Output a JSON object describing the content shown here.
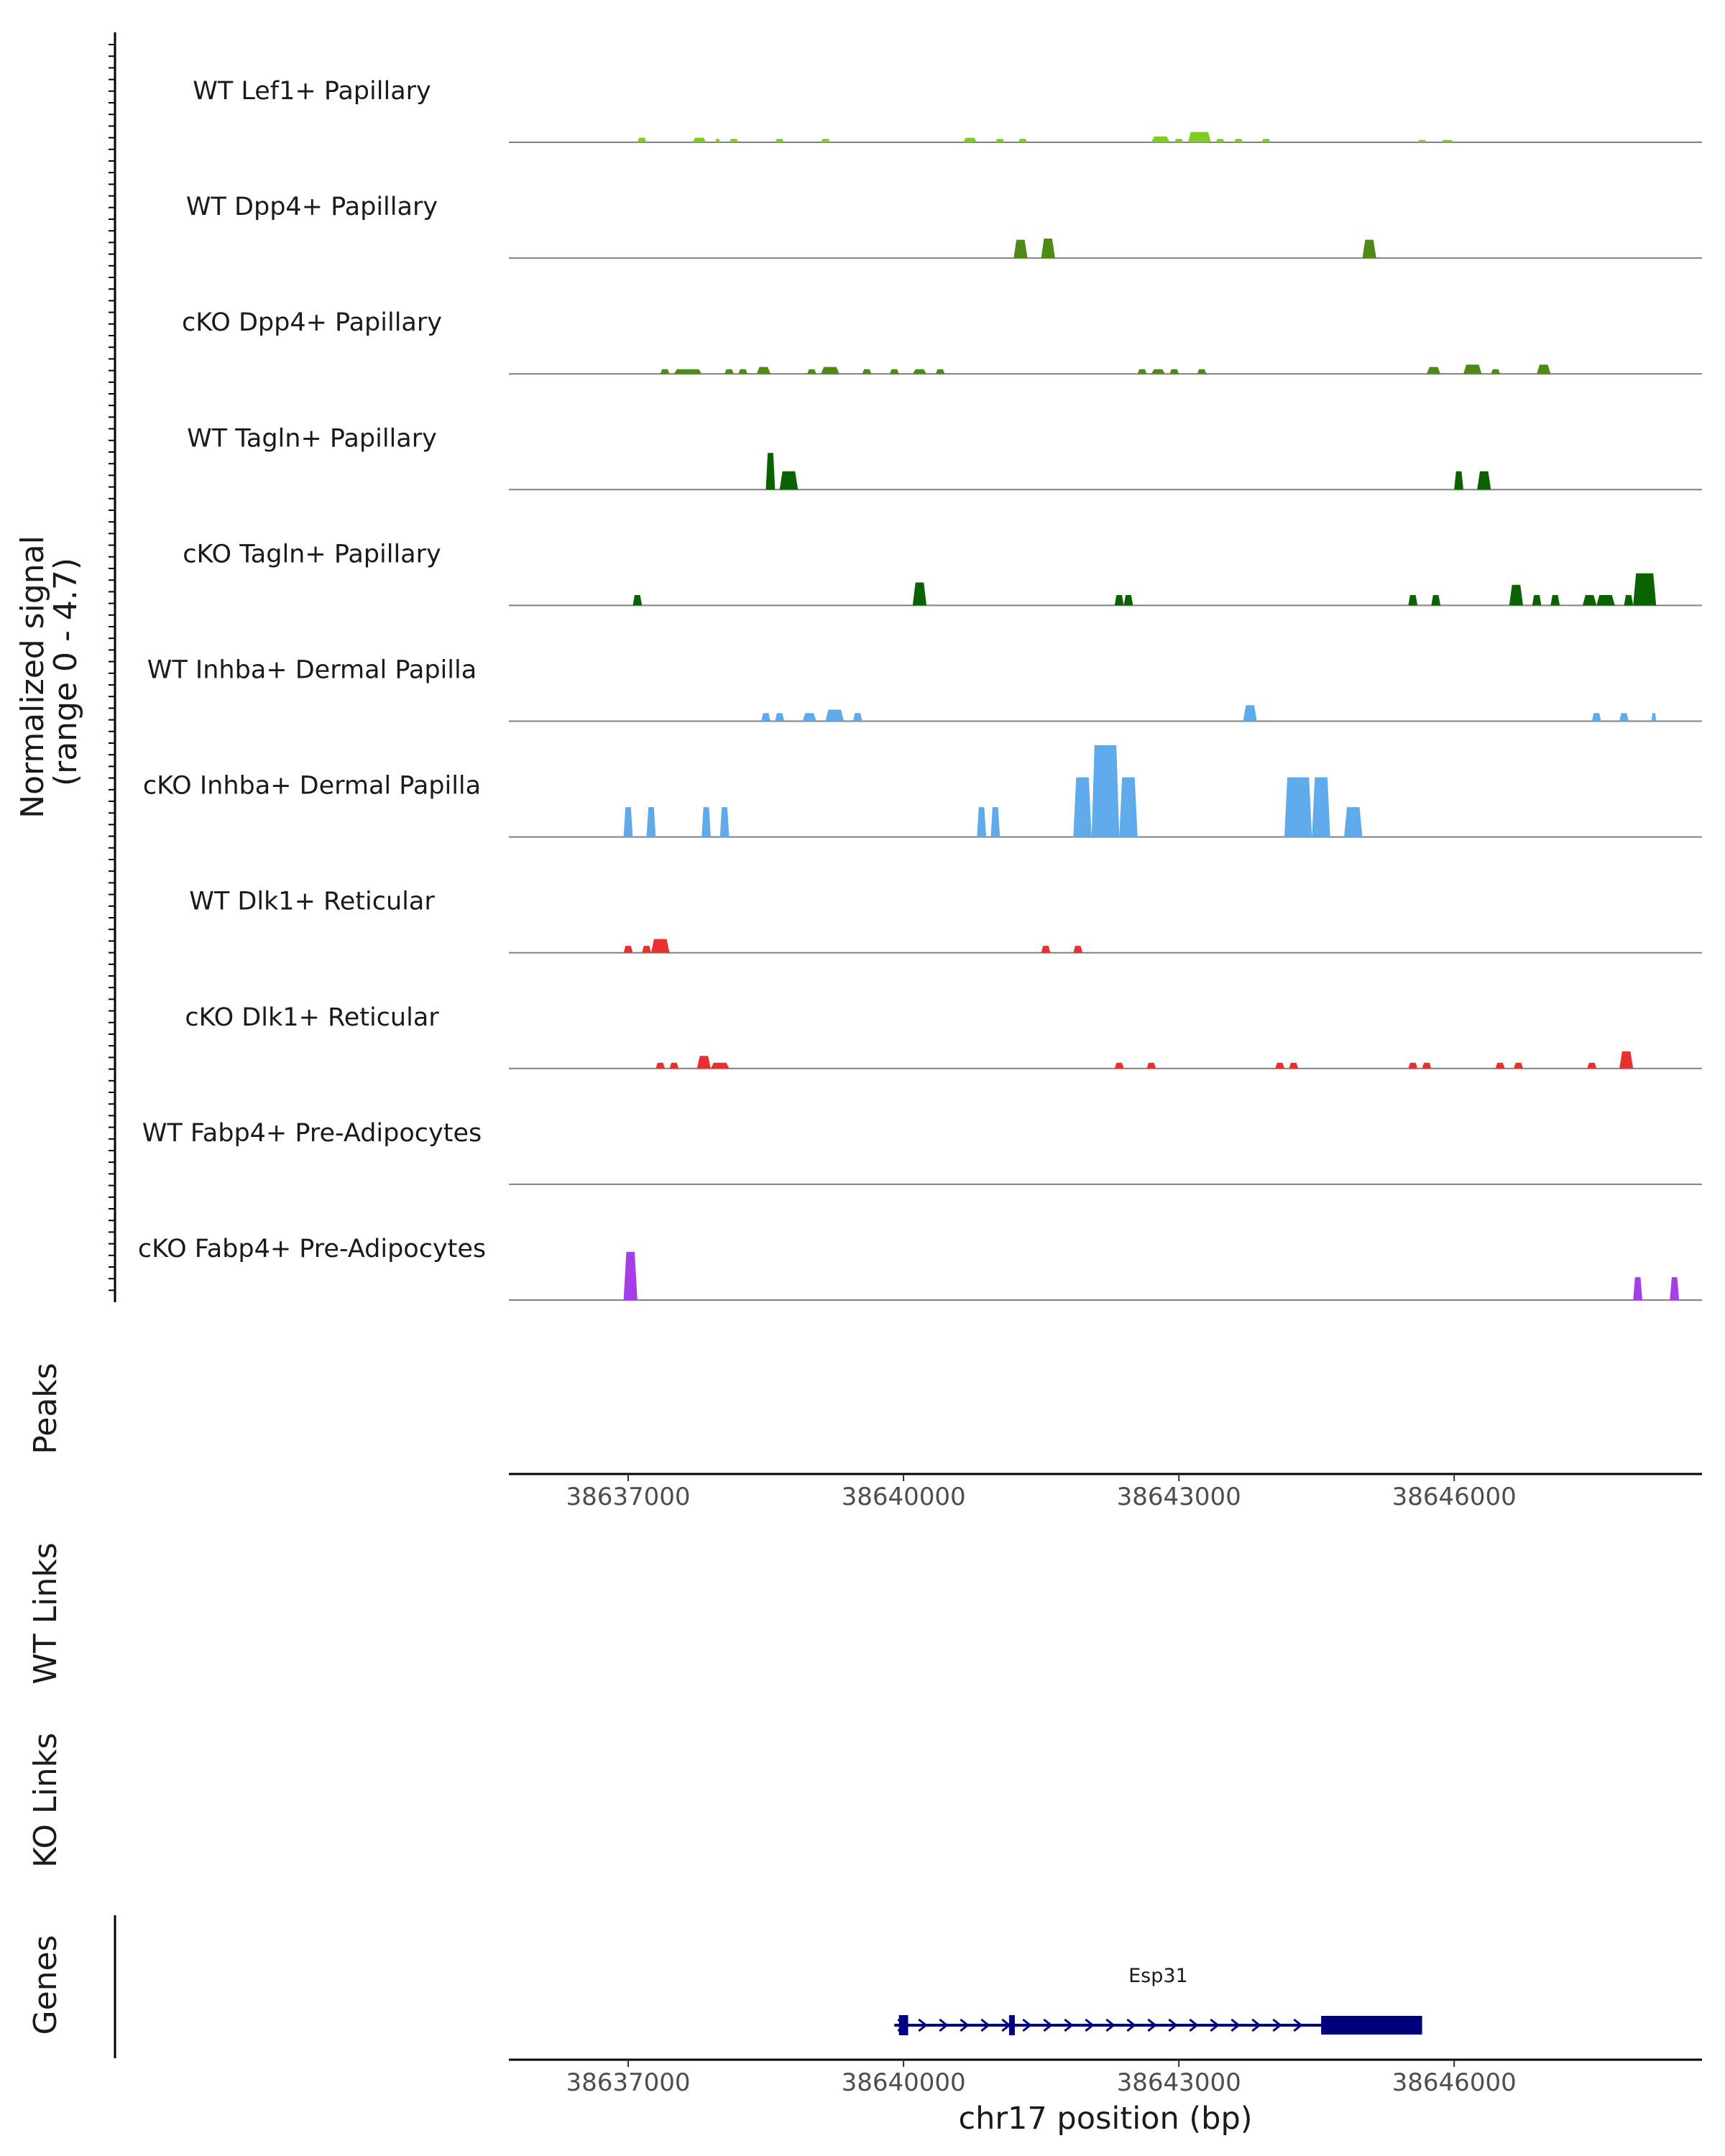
{
  "chart_data": {
    "type": "area",
    "title": "",
    "chromosome": "chr17",
    "x_range": [
      38635700,
      38648700
    ],
    "y_range": [
      0,
      4.7
    ],
    "ylabel_line1": "Normalized signal",
    "ylabel_line2": "(range 0 - 4.7)",
    "xlabel": "chr17 position (bp)",
    "x_ticks": [
      38637000,
      38640000,
      38643000,
      38646000
    ],
    "x_tick_labels": [
      "38637000",
      "38640000",
      "38643000",
      "38646000"
    ],
    "side_labels": {
      "peaks": "Peaks",
      "wt_links": "WT Links",
      "ko_links": "KO Links",
      "genes": "Genes"
    },
    "tracks": [
      {
        "name": "WT Lef1+ Papillary",
        "color": "#7ccd1f",
        "peaks": [
          [
            38637100,
            38637200,
            0.2
          ],
          [
            38637700,
            38637850,
            0.2
          ],
          [
            38637950,
            38638000,
            0.15
          ],
          [
            38638100,
            38638200,
            0.15
          ],
          [
            38638600,
            38638700,
            0.15
          ],
          [
            38639100,
            38639200,
            0.15
          ],
          [
            38640650,
            38640800,
            0.2
          ],
          [
            38641000,
            38641100,
            0.15
          ],
          [
            38641250,
            38641350,
            0.15
          ],
          [
            38642700,
            38642900,
            0.25
          ],
          [
            38642950,
            38643050,
            0.15
          ],
          [
            38643100,
            38643350,
            0.45
          ],
          [
            38643400,
            38643500,
            0.15
          ],
          [
            38643600,
            38643700,
            0.15
          ],
          [
            38643900,
            38644000,
            0.15
          ],
          [
            38645600,
            38645700,
            0.1
          ],
          [
            38645850,
            38646000,
            0.1
          ]
        ]
      },
      {
        "name": "WT Dpp4+ Papillary",
        "color": "#4e8b16",
        "peaks": [
          [
            38641200,
            38641350,
            0.8
          ],
          [
            38641500,
            38641650,
            0.85
          ],
          [
            38645000,
            38645150,
            0.8
          ]
        ]
      },
      {
        "name": "cKO Dpp4+ Papillary",
        "color": "#4e8b16",
        "peaks": [
          [
            38637350,
            38637450,
            0.2
          ],
          [
            38637500,
            38637800,
            0.2
          ],
          [
            38638050,
            38638150,
            0.2
          ],
          [
            38638200,
            38638300,
            0.2
          ],
          [
            38638400,
            38638550,
            0.3
          ],
          [
            38638950,
            38639050,
            0.2
          ],
          [
            38639100,
            38639300,
            0.3
          ],
          [
            38639550,
            38639650,
            0.2
          ],
          [
            38639850,
            38639950,
            0.2
          ],
          [
            38640100,
            38640250,
            0.2
          ],
          [
            38640350,
            38640450,
            0.2
          ],
          [
            38642550,
            38642650,
            0.2
          ],
          [
            38642700,
            38642850,
            0.2
          ],
          [
            38642900,
            38643000,
            0.2
          ],
          [
            38643200,
            38643300,
            0.2
          ],
          [
            38645700,
            38645850,
            0.3
          ],
          [
            38646100,
            38646300,
            0.4
          ],
          [
            38646400,
            38646500,
            0.2
          ],
          [
            38646900,
            38647050,
            0.4
          ]
        ]
      },
      {
        "name": "WT Tagln+ Papillary",
        "color": "#0b6200",
        "peaks": [
          [
            38638500,
            38638600,
            1.6
          ],
          [
            38638650,
            38638850,
            0.8
          ],
          [
            38646000,
            38646100,
            0.8
          ],
          [
            38646250,
            38646400,
            0.8
          ]
        ]
      },
      {
        "name": "cKO Tagln+ Papillary",
        "color": "#0b6200",
        "peaks": [
          [
            38637050,
            38637150,
            0.45
          ],
          [
            38640100,
            38640250,
            1.0
          ],
          [
            38642300,
            38642400,
            0.45
          ],
          [
            38642400,
            38642500,
            0.45
          ],
          [
            38645500,
            38645600,
            0.45
          ],
          [
            38645750,
            38645850,
            0.45
          ],
          [
            38646600,
            38646750,
            0.9
          ],
          [
            38646850,
            38646950,
            0.45
          ],
          [
            38647050,
            38647150,
            0.45
          ],
          [
            38647400,
            38647550,
            0.45
          ],
          [
            38647550,
            38647750,
            0.45
          ],
          [
            38647850,
            38647950,
            0.45
          ],
          [
            38647950,
            38648200,
            1.4
          ]
        ]
      },
      {
        "name": "WT Inhba+ Dermal Papilla",
        "color": "#5eaaea",
        "peaks": [
          [
            38638450,
            38638550,
            0.35
          ],
          [
            38638600,
            38638700,
            0.35
          ],
          [
            38638900,
            38639050,
            0.35
          ],
          [
            38639150,
            38639350,
            0.5
          ],
          [
            38639450,
            38639550,
            0.35
          ],
          [
            38643700,
            38643850,
            0.7
          ],
          [
            38647500,
            38647600,
            0.35
          ],
          [
            38647800,
            38647900,
            0.35
          ],
          [
            38648150,
            38648200,
            0.35
          ]
        ]
      },
      {
        "name": "cKO Inhba+ Dermal Papilla",
        "color": "#5eaaea",
        "peaks": [
          [
            38636950,
            38637050,
            1.3
          ],
          [
            38637200,
            38637300,
            1.3
          ],
          [
            38637800,
            38637900,
            1.3
          ],
          [
            38638000,
            38638100,
            1.3
          ],
          [
            38640800,
            38640900,
            1.3
          ],
          [
            38640950,
            38641050,
            1.3
          ],
          [
            38641850,
            38642050,
            2.6
          ],
          [
            38642050,
            38642350,
            4.0
          ],
          [
            38642350,
            38642550,
            2.6
          ],
          [
            38644150,
            38644450,
            2.6
          ],
          [
            38644450,
            38644650,
            2.6
          ],
          [
            38644800,
            38645000,
            1.3
          ]
        ]
      },
      {
        "name": "WT Dlk1+ Reticular",
        "color": "#e8302e",
        "peaks": [
          [
            38636950,
            38637050,
            0.3
          ],
          [
            38637150,
            38637250,
            0.3
          ],
          [
            38637250,
            38637450,
            0.6
          ],
          [
            38641500,
            38641600,
            0.3
          ],
          [
            38641850,
            38641950,
            0.3
          ]
        ]
      },
      {
        "name": "cKO Dlk1+ Reticular",
        "color": "#e8302e",
        "peaks": [
          [
            38637300,
            38637400,
            0.25
          ],
          [
            38637450,
            38637550,
            0.25
          ],
          [
            38637750,
            38637900,
            0.55
          ],
          [
            38637900,
            38638100,
            0.25
          ],
          [
            38642300,
            38642400,
            0.25
          ],
          [
            38642650,
            38642750,
            0.25
          ],
          [
            38644050,
            38644150,
            0.25
          ],
          [
            38644200,
            38644300,
            0.25
          ],
          [
            38645500,
            38645600,
            0.25
          ],
          [
            38645650,
            38645750,
            0.25
          ],
          [
            38646450,
            38646550,
            0.25
          ],
          [
            38646650,
            38646750,
            0.25
          ],
          [
            38647450,
            38647550,
            0.25
          ],
          [
            38647800,
            38647950,
            0.75
          ]
        ]
      },
      {
        "name": "WT Fabp4+ Pre-Adipocytes",
        "color": "#a53ee8",
        "peaks": []
      },
      {
        "name": "cKO Fabp4+ Pre-Adipocytes",
        "color": "#a53ee8",
        "peaks": [
          [
            38636950,
            38637100,
            2.1
          ],
          [
            38647950,
            38648050,
            1.0
          ],
          [
            38648350,
            38648450,
            1.0
          ]
        ]
      }
    ],
    "gene": {
      "name": "Esp31",
      "color": "#00007f",
      "start": 38639900,
      "end": 38645650,
      "exons": [
        [
          38639950,
          38640050
        ],
        [
          38641150,
          38641200
        ]
      ],
      "utr_block": [
        38644550,
        38645650
      ]
    }
  }
}
